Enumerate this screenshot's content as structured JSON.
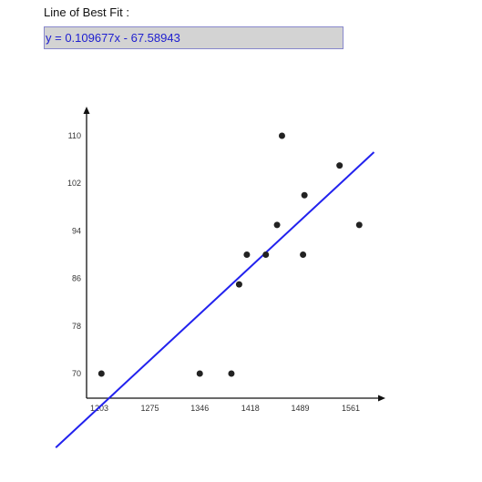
{
  "header": {
    "label": "Line of Best Fit :",
    "equation": "y = 0.109677x - 67.58943"
  },
  "colors": {
    "fit_line": "#2222ee",
    "points": "#222222",
    "axis": "#111111",
    "equation_bg": "#d3d3d3",
    "equation_text": "#2020d0"
  },
  "chart_data": {
    "type": "scatter",
    "x_ticks": [
      1203,
      1275,
      1346,
      1418,
      1489,
      1561
    ],
    "y_ticks": [
      70,
      78,
      86,
      94,
      102,
      110
    ],
    "points": [
      {
        "x": 1206,
        "y": 70
      },
      {
        "x": 1346,
        "y": 70
      },
      {
        "x": 1391,
        "y": 70
      },
      {
        "x": 1402,
        "y": 85
      },
      {
        "x": 1413,
        "y": 90
      },
      {
        "x": 1440,
        "y": 90
      },
      {
        "x": 1456,
        "y": 95
      },
      {
        "x": 1463,
        "y": 110
      },
      {
        "x": 1493,
        "y": 90
      },
      {
        "x": 1495,
        "y": 100
      },
      {
        "x": 1545,
        "y": 105
      },
      {
        "x": 1573,
        "y": 95
      }
    ],
    "fit": {
      "slope": 0.109677,
      "intercept": -67.58943
    },
    "fit_range": [
      1141,
      1594
    ],
    "grid": false
  }
}
